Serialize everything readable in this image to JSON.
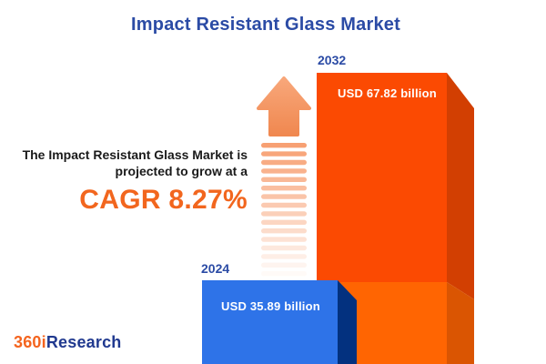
{
  "title": "Impact Resistant Glass Market",
  "tagline": {
    "line1": "The Impact Resistant Glass Market is",
    "line2": "projected to grow at a",
    "cagr": "CAGR 8.27%"
  },
  "bars": {
    "y2024": {
      "year": "2024",
      "value_label": "USD 35.89 billion"
    },
    "y2032": {
      "year": "2032",
      "value_label": "USD 67.82 billion"
    }
  },
  "logo": {
    "part1": "360i",
    "part2": "Research"
  },
  "chart_data": {
    "type": "bar",
    "title": "Impact Resistant Glass Market",
    "categories": [
      "2024",
      "2032"
    ],
    "values": [
      35.89,
      67.82
    ],
    "unit": "USD billion",
    "value_labels": [
      "USD 35.89 billion",
      "USD 67.82 billion"
    ],
    "cagr_percent": 8.27,
    "orientation": "vertical",
    "legend": "none",
    "bar_colors": [
      "#2E73E8",
      "#FB4A02"
    ],
    "annotations": [
      "The Impact Resistant Glass Market is projected to grow at a CAGR 8.27%"
    ]
  },
  "colors": {
    "title-blue": "#2B4BA5",
    "accent-orange": "#F2661E",
    "text-dark": "#1A1A1A",
    "orange-face-top": "#FB4A02",
    "orange-face-bottom": "#FF6502",
    "orange-side-top": "#D23F02",
    "orange-side-bottom": "#DA5502",
    "blue-face": "#2E73E8",
    "blue-side": "#03317F",
    "arrow-head-top": "#F8A77A",
    "arrow-head-bottom": "#F08850",
    "arrow-stripe": "#F79B6B",
    "logo-orange": "#F4641E",
    "logo-blue": "#20398F"
  }
}
